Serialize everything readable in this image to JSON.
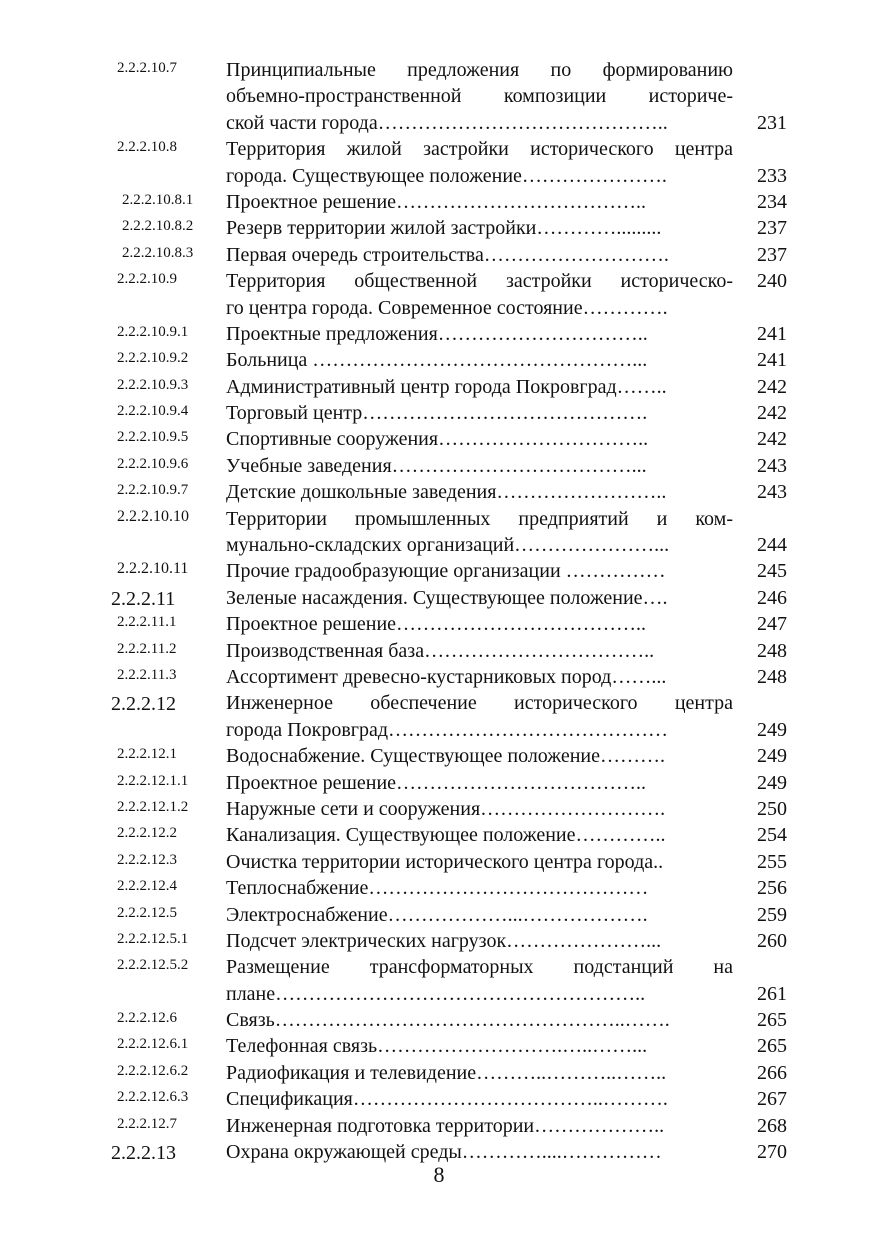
{
  "entries": [
    {
      "num": "2.2.2.10.7",
      "lines": [
        "Принципиальные предложения по формированию",
        "объемно-пространственной композиции историче-",
        "ской части города…………………………………….."
      ],
      "page": "231"
    },
    {
      "num": "2.2.2.10.8",
      "lines": [
        "Территория жилой застройки исторического центра",
        "города. Существующее положение…………………."
      ],
      "page": "233"
    },
    {
      "num": "2.2.2.10.8.1",
      "lines": [
        "Проектное решение……………………………….."
      ],
      "page": "234",
      "style": "shift"
    },
    {
      "num": "2.2.2.10.8.2",
      "lines": [
        "Резерв территории жилой застройки…………........."
      ],
      "page": "237",
      "style": "shift"
    },
    {
      "num": "2.2.2.10.8.3",
      "lines": [
        "Первая очередь строительства………………………."
      ],
      "page": "237",
      "style": "shift"
    },
    {
      "num": "2.2.2.10.9",
      "lines": [
        "Территория общественной застройки историческо-",
        "го центра города. Современное состояние…………."
      ],
      "page": "240",
      "page_first": true
    },
    {
      "num": "2.2.2.10.9.1",
      "lines": [
        "Проектные предложения………………………….."
      ],
      "page": "241"
    },
    {
      "num": "2.2.2.10.9.2",
      "lines": [
        "Больница …………………………………………..."
      ],
      "page": "241"
    },
    {
      "num": "2.2.2.10.9.3",
      "lines": [
        "Административный центр города Покровград…….."
      ],
      "page": "242"
    },
    {
      "num": "2.2.2.10.9.4",
      "lines": [
        "Торговый центр……………………………………."
      ],
      "page": "242"
    },
    {
      "num": "2.2.2.10.9.5",
      "lines": [
        "Спортивные сооружения………………………….."
      ],
      "page": "242"
    },
    {
      "num": "2.2.2.10.9.6",
      "lines": [
        "Учебные заведения………………………………..."
      ],
      "page": "243"
    },
    {
      "num": "2.2.2.10.9.7",
      "lines": [
        "Детские дошкольные заведения…………………….."
      ],
      "page": "243"
    },
    {
      "num": "2.2.2.10.10",
      "lines": [
        "Территории промышленных предприятий  и ком-",
        "мунально-складских организаций…………………..."
      ],
      "page": "244",
      "style": "mid"
    },
    {
      "num": "2.2.2.10.11",
      "lines": [
        "Прочие градообразующие организации ……………"
      ],
      "page": "245",
      "style": "mid"
    },
    {
      "num": "2.2.2.11",
      "lines": [
        "Зеленые насаждения. Существующее положение…."
      ],
      "page": "246",
      "style": "big"
    },
    {
      "num": "2.2.2.11.1",
      "lines": [
        "Проектное решение……………………………….."
      ],
      "page": "247"
    },
    {
      "num": "2.2.2.11.2",
      "lines": [
        "Производственная база…………………………….."
      ],
      "page": "248"
    },
    {
      "num": "2.2.2.11.3",
      "lines": [
        "Ассортимент древесно-кустарниковых пород……..."
      ],
      "page": "248"
    },
    {
      "num": "2.2.2.12",
      "lines": [
        "Инженерное обеспечение исторического центра",
        "города Покровград……………………………………"
      ],
      "page": "249",
      "style": "big"
    },
    {
      "num": "2.2.2.12.1",
      "lines": [
        "Водоснабжение. Существующее положение………."
      ],
      "page": "249"
    },
    {
      "num": "2.2.2.12.1.1",
      "lines": [
        "Проектное решение……………………………….."
      ],
      "page": "249"
    },
    {
      "num": "2.2.2.12.1.2",
      "lines": [
        "Наружные сети и сооружения………………………."
      ],
      "page": "250"
    },
    {
      "num": "2.2.2.12.2",
      "lines": [
        "Канализация. Существующее положение………….."
      ],
      "page": "254"
    },
    {
      "num": "2.2.2.12.3",
      "lines": [
        "Очистка территории исторического центра города.."
      ],
      "page": "255"
    },
    {
      "num": "2.2.2.12.4",
      "lines": [
        "Теплоснабжение……………………………………"
      ],
      "page": "256"
    },
    {
      "num": "2.2.2.12.5",
      "lines": [
        "Электроснабжение………………...………………."
      ],
      "page": "259"
    },
    {
      "num": "2.2.2.12.5.1",
      "lines": [
        "Подсчет электрических нагрузок…………………..."
      ],
      "page": "260"
    },
    {
      "num": "2.2.2.12.5.2",
      "lines": [
        "Размещение трансформаторных подстанций на",
        "плане……………………………………………….."
      ],
      "page": "261"
    },
    {
      "num": "2.2.2.12.6",
      "lines": [
        "Связь……………………………………………..……."
      ],
      "page": "265"
    },
    {
      "num": "2.2.2.12.6.1",
      "lines": [
        "Телефонная связь……………………….…..……..."
      ],
      "page": "265"
    },
    {
      "num": "2.2.2.12.6.2",
      "lines": [
        "Радиофикация и телевидение………..………..…….."
      ],
      "page": "266"
    },
    {
      "num": "2.2.2.12.6.3",
      "lines": [
        "Спецификация………………………………..………."
      ],
      "page": "267"
    },
    {
      "num": "2.2.2.12.7",
      "lines": [
        "Инженерная подготовка территории……………….."
      ],
      "page": "268"
    },
    {
      "num": "2.2.2.13",
      "lines": [
        "Охрана окружающей среды…………....……………"
      ],
      "page": "270",
      "style": "big"
    }
  ],
  "page_number": "8"
}
